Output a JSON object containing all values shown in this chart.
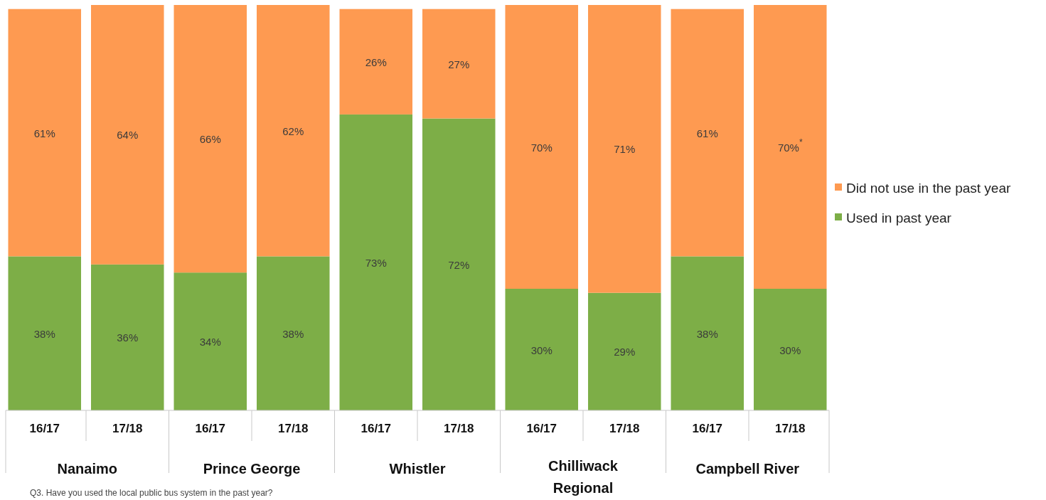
{
  "chart_data": {
    "type": "bar",
    "stacked": true,
    "categories": [
      "16/17",
      "17/18",
      "16/17",
      "17/18",
      "16/17",
      "17/18",
      "16/17",
      "17/18",
      "16/17",
      "17/18"
    ],
    "series": [
      {
        "name": "Used in past year",
        "color": "#7dae47",
        "values": [
          38,
          36,
          34,
          38,
          73,
          72,
          30,
          29,
          38,
          30
        ],
        "value_labels": [
          "38%",
          "36%",
          "34%",
          "38%",
          "73%",
          "72%",
          "30%",
          "29%",
          "38%",
          "30%"
        ]
      },
      {
        "name": "Did not use in the past year",
        "color": "#fe9a51",
        "values": [
          61,
          64,
          66,
          62,
          26,
          27,
          70,
          71,
          61,
          70
        ],
        "value_labels": [
          "61%",
          "64%",
          "66%",
          "62%",
          "26%",
          "27%",
          "70%",
          "71%",
          "61%",
          "70%$^{*}$"
        ]
      }
    ],
    "ylim": [
      0,
      100
    ],
    "tick_labels": "x",
    "legend": "right",
    "annotations": [
      "Nanaimo",
      "Prince George",
      "Whistler",
      "Chilliwack Regional",
      "Campbell River",
      "Q3. Have you used the local public bus system in the past year?"
    ]
  }
}
